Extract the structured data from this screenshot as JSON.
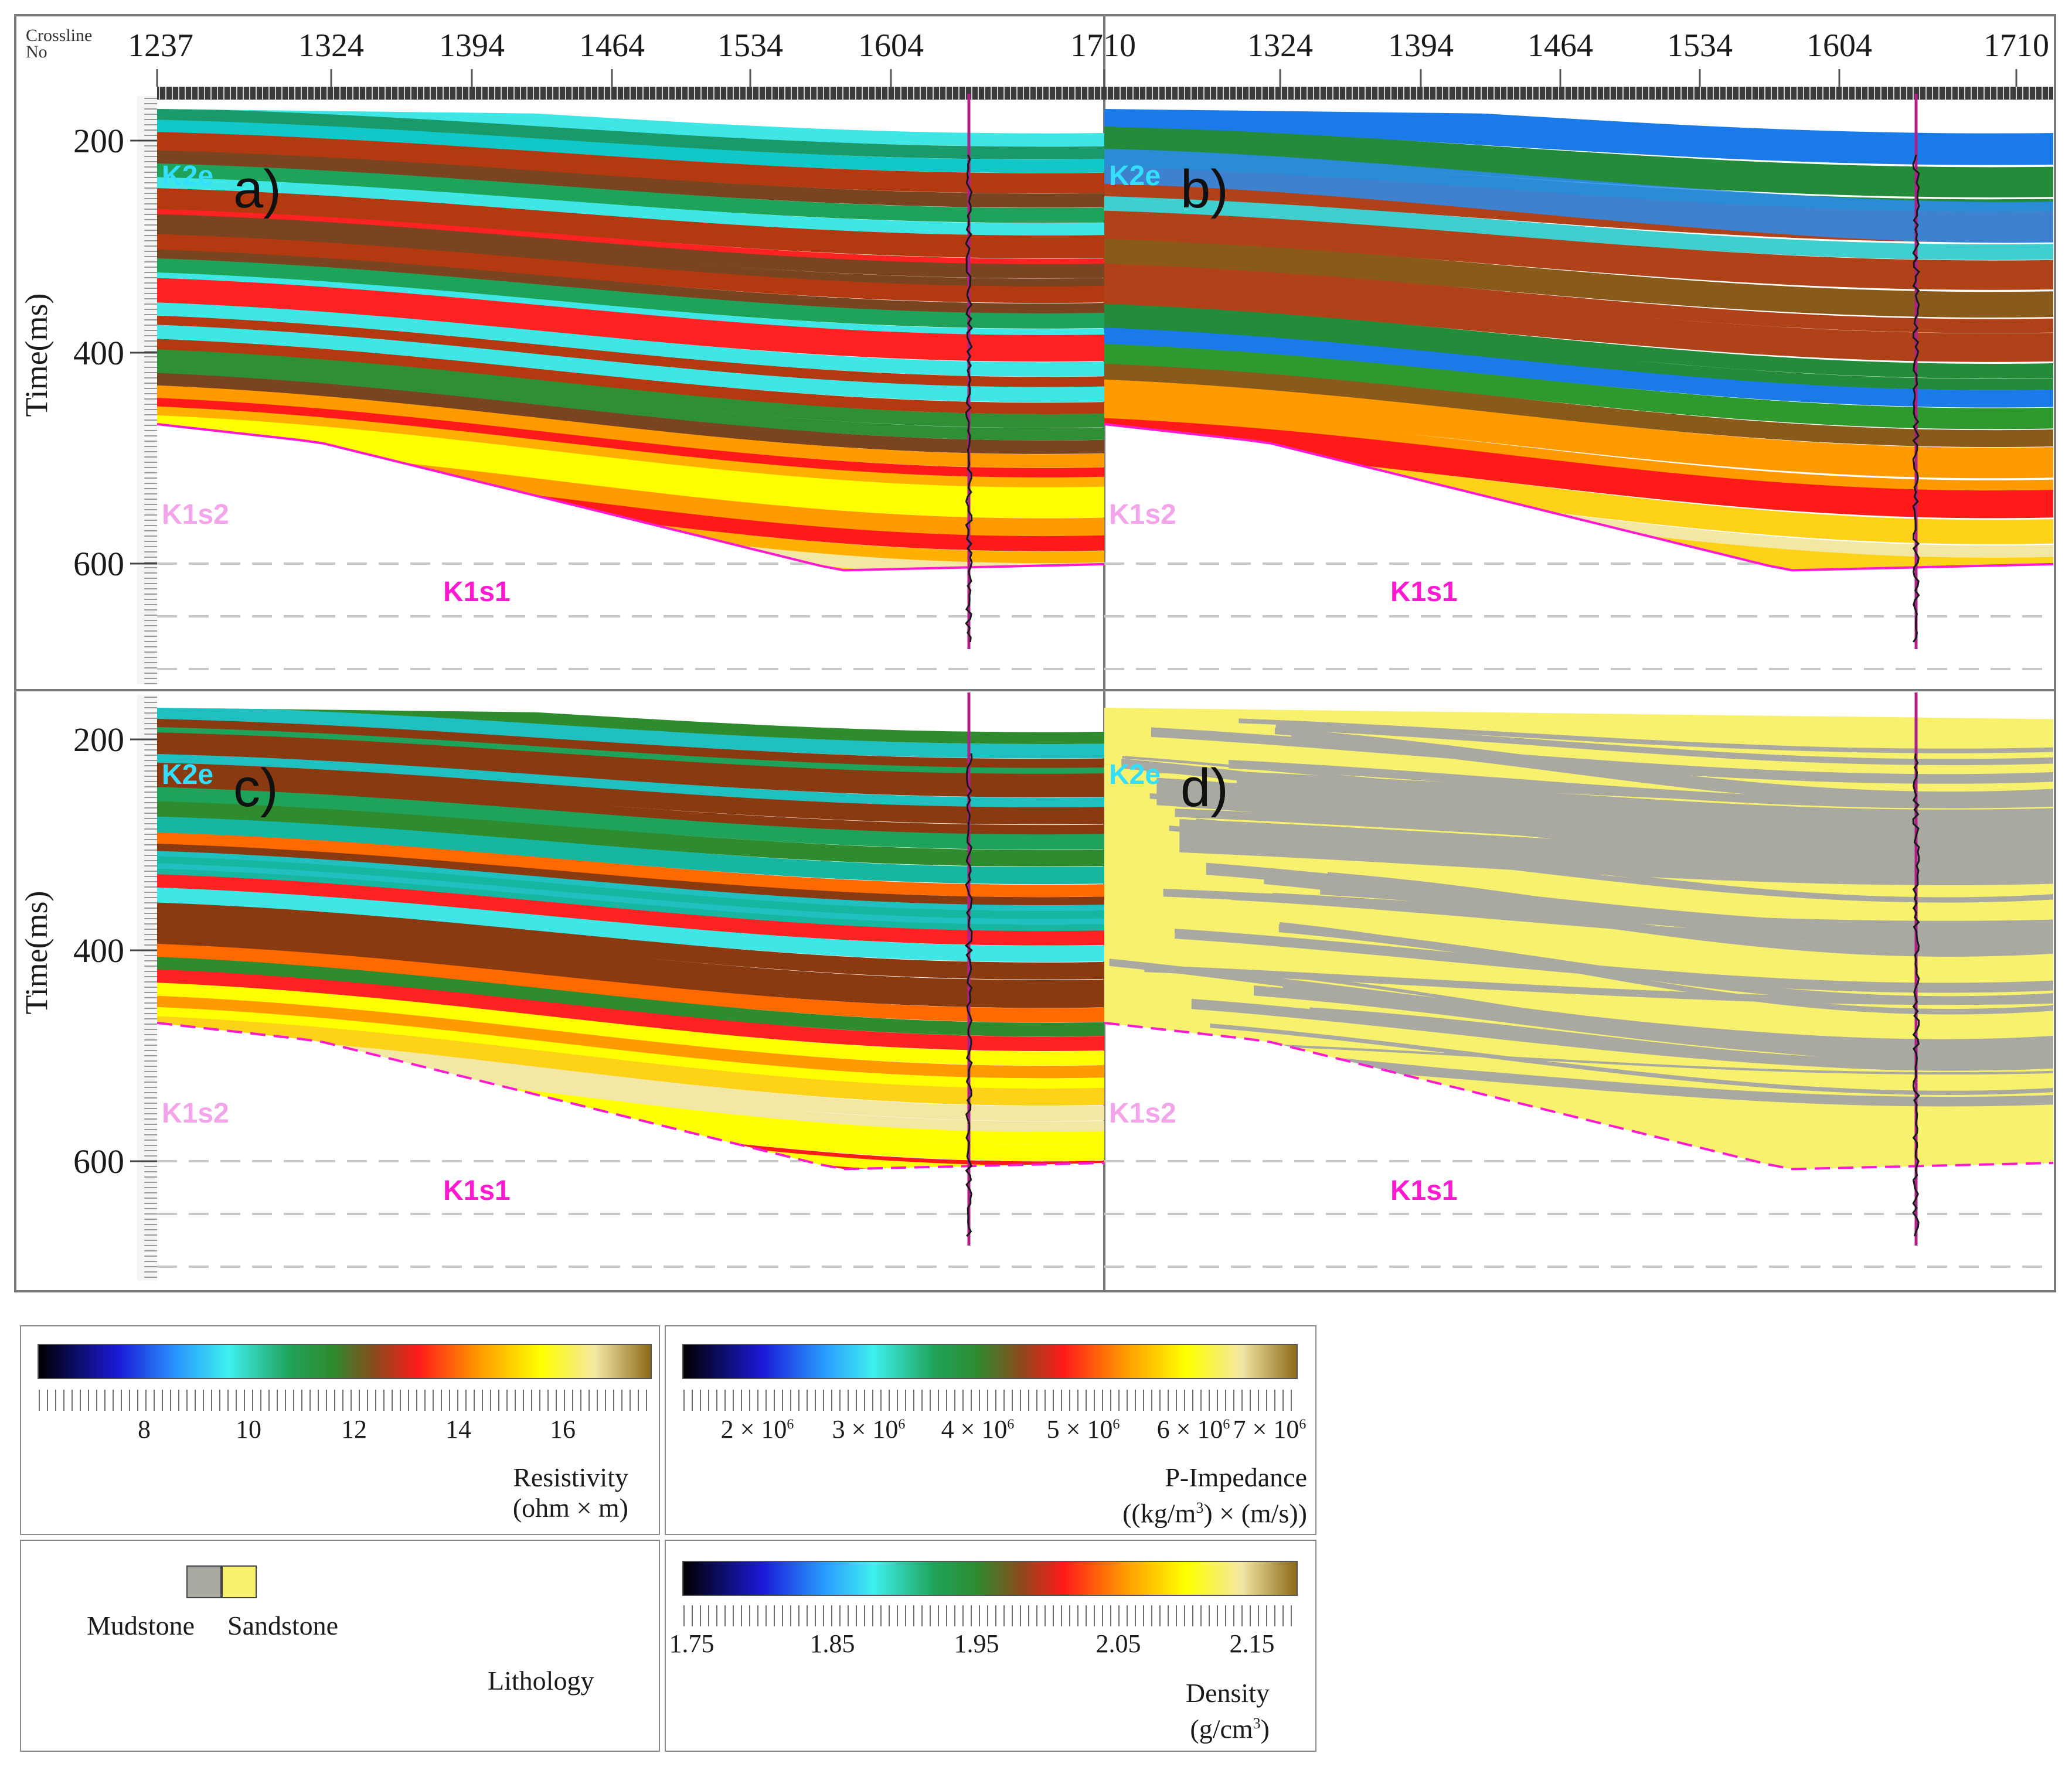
{
  "axis": {
    "crossline_label_line1": "Crossline",
    "crossline_label_line2": "No",
    "crossline_ticks": [
      "1237",
      "1324",
      "1394",
      "1464",
      "1534",
      "1604",
      "1710"
    ],
    "crossline_ticks_right": [
      "1324",
      "1394",
      "1464",
      "1534",
      "1604",
      "1710"
    ],
    "time_label": "Time(ms)",
    "time_ticks": [
      "200",
      "400",
      "600"
    ]
  },
  "panels": [
    {
      "id": "a",
      "label": "a)",
      "style": "resistivity",
      "horizons": {
        "top": "K2e",
        "mid": "K1s2",
        "base": "K1s1"
      }
    },
    {
      "id": "b",
      "label": "b)",
      "style": "impedance",
      "horizons": {
        "top": "K2e",
        "mid": "K1s2",
        "base": "K1s1"
      }
    },
    {
      "id": "c",
      "label": "c)",
      "style": "density",
      "horizons": {
        "top": "K2e",
        "mid": "K1s2",
        "base": "K1s1"
      }
    },
    {
      "id": "d",
      "label": "d)",
      "style": "lithology",
      "horizons": {
        "top": "K2e",
        "mid": "K1s2",
        "base": "K1s1"
      }
    }
  ],
  "colors": {
    "horizon_top": "#33dfff",
    "horizon_mid": "#f3a4ea",
    "horizon_base": "#ff1ad1",
    "mudstone": "#a9a9a1",
    "sandstone": "#f8f16e",
    "well_trace": "#1a1a1a",
    "well_line": "#b0208c"
  },
  "legends": {
    "resistivity": {
      "ticks": [
        "8",
        "10",
        "12",
        "14",
        "16"
      ],
      "title_line1": "Resistivity",
      "title_line2": "(ohm × m)"
    },
    "impedance": {
      "ticks": [
        {
          "mant": "2 × 10",
          "exp": "6"
        },
        {
          "mant": "3 × 10",
          "exp": "6"
        },
        {
          "mant": "4 × 10",
          "exp": "6"
        },
        {
          "mant": "5 × 10",
          "exp": "6"
        },
        {
          "mant": "6 × 10",
          "exp": "6"
        },
        {
          "mant": "7 × 10",
          "exp": "6"
        }
      ],
      "title_line1": "P-Impedance",
      "title_line2_pre": "((kg/m",
      "title_line2_sup": "3",
      "title_line2_post": ") × (m/s))"
    },
    "lithology": {
      "mudstone_label": "Mudstone",
      "sandstone_label": "Sandstone",
      "title": "Lithology"
    },
    "density": {
      "ticks": [
        "1.75",
        "1.85",
        "1.95",
        "2.05",
        "2.15"
      ],
      "title_line1": "Density",
      "title_line2_pre": "(g/cm",
      "title_line2_sup": "3",
      "title_line2_post": ")"
    }
  }
}
